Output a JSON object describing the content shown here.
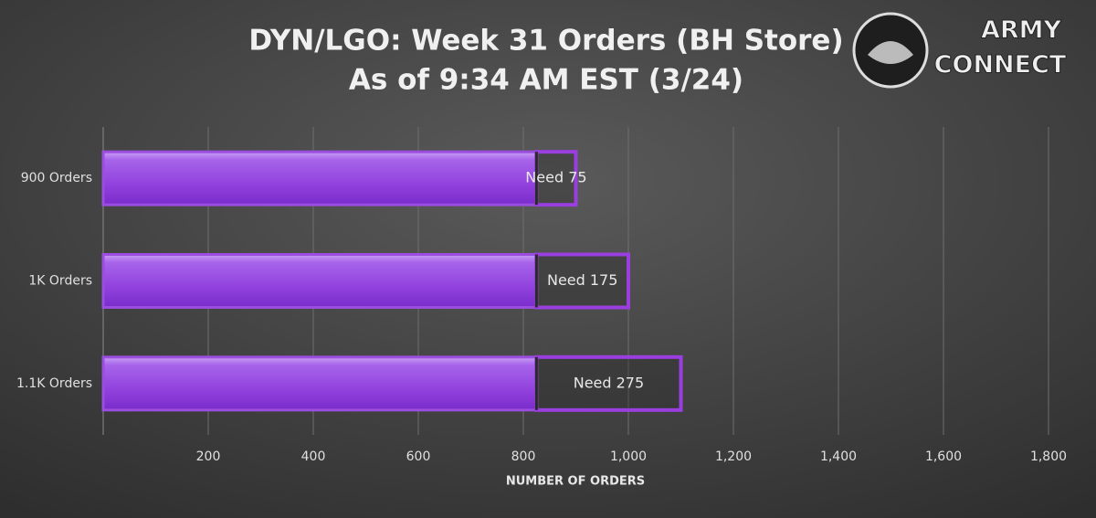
{
  "chart_data": {
    "type": "bar",
    "orientation": "horizontal",
    "stacked": true,
    "title": [
      "DYN/LGO: Week 31 Orders (BH Store)",
      "As of 9:34 AM EST (3/24)"
    ],
    "x_label": "NUMBER OF ORDERS",
    "categories": [
      "900 Orders",
      "1K Orders",
      "1.1K Orders"
    ],
    "series": [
      {
        "color": "#9b4ddf",
        "values": [
          825,
          825,
          825
        ]
      },
      {
        "color": "#9a3ee0",
        "values": [
          75,
          175,
          275
        ],
        "value_labels": [
          "Need 75",
          "Need 175",
          "Need 275"
        ]
      }
    ],
    "xlim": [
      0,
      1800
    ],
    "xticks": [
      200,
      400,
      600,
      800,
      {
        "value": 1000,
        "label": "1,000"
      },
      {
        "value": 1200,
        "label": "1,200"
      },
      {
        "value": 1400,
        "label": "1,400"
      },
      {
        "value": 1600,
        "label": "1,600"
      },
      {
        "value": 1800,
        "label": "1,800"
      }
    ],
    "grid": true
  },
  "logo": {
    "lines": [
      "ARMY",
      "CONNECT"
    ]
  }
}
